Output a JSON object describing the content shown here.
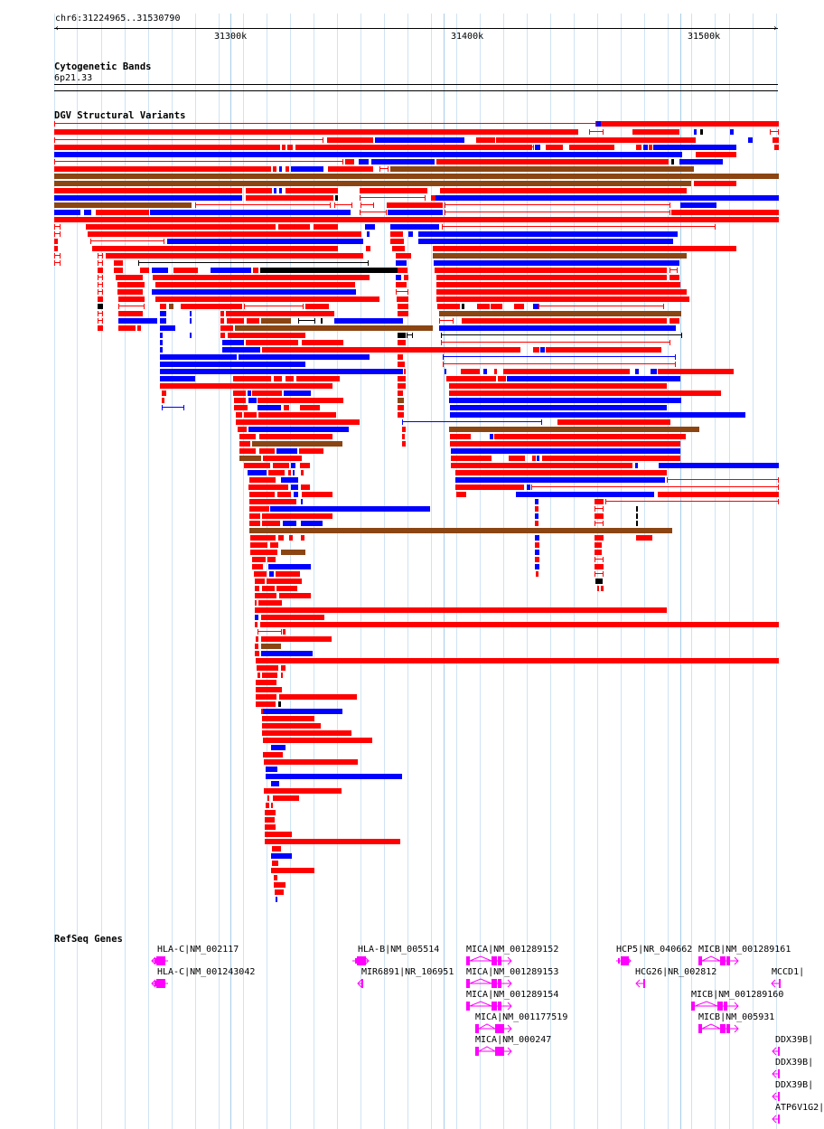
{
  "header": {
    "location": "chr6:31224965..31530790",
    "ticks": [
      "31300k",
      "31400k",
      "31500k"
    ]
  },
  "tracks": {
    "cytoband": {
      "title": "Cytogenetic Bands",
      "band": "6p21.33"
    },
    "dgv": {
      "title": "DGV Structural Variants"
    },
    "refseq": {
      "title": "RefSeq Genes"
    }
  },
  "genes": [
    {
      "label": "HLA-C|NM_002117"
    },
    {
      "label": "HLA-C|NM_001243042"
    },
    {
      "label": "HLA-B|NM_005514"
    },
    {
      "label": "MIR6891|NR_106951"
    },
    {
      "label": "MICA|NM_001289152"
    },
    {
      "label": "MICA|NM_001289153"
    },
    {
      "label": "MICA|NM_001289154"
    },
    {
      "label": "MICA|NM_001177519"
    },
    {
      "label": "MICA|NM_000247"
    },
    {
      "label": "HCP5|NR_040662"
    },
    {
      "label": "HCG26|NR_002812"
    },
    {
      "label": "MICB|NM_001289161"
    },
    {
      "label": "MICB|NM_001289160"
    },
    {
      "label": "MICB|NM_005931"
    },
    {
      "label": "MCCD1|"
    },
    {
      "label": "DDX39B|"
    },
    {
      "label": "DDX39B|"
    },
    {
      "label": "DDX39B|"
    },
    {
      "label": "ATP6V1G2|"
    }
  ],
  "colors": {
    "loss": "#ff0000",
    "gain": "#0000ff",
    "gain_loss": "#8b4513",
    "inversion": "#000000",
    "gene": "#ff00ff",
    "grid": "#cfe3f3"
  }
}
